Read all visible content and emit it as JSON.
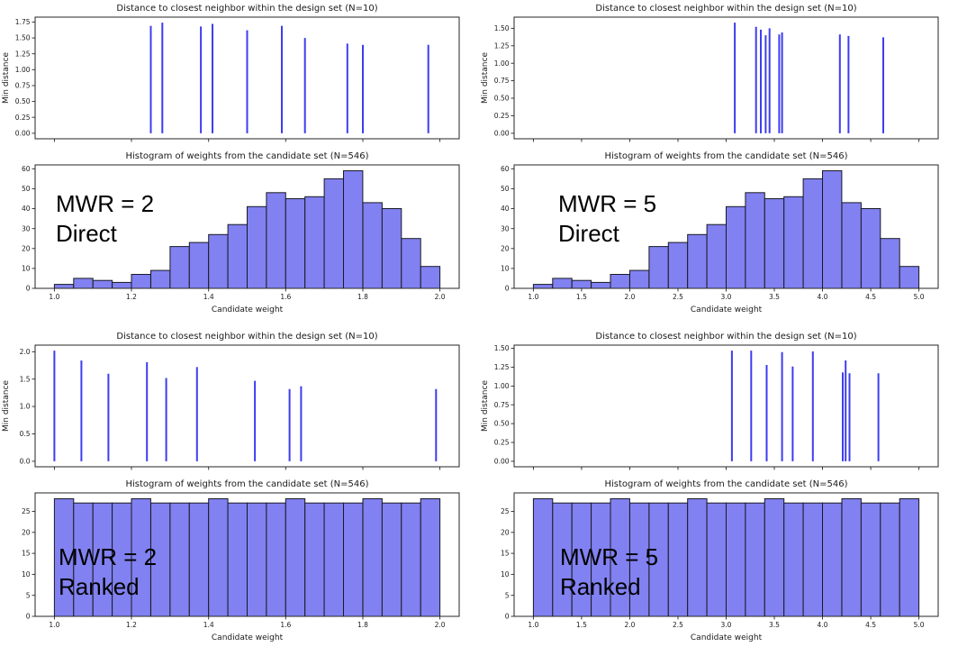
{
  "chart_data": {
    "colors": {
      "stem_line": "#3d3df0",
      "bar_fill": "#8181f1",
      "bar_edge": "#1a1a24",
      "text": "#1a1a1a",
      "spine": "#262626",
      "annotation": "#000000",
      "background": "#ffffff"
    },
    "panels": [
      {
        "name": "MWR = 2 Direct",
        "annotation": {
          "line1": "MWR = 2",
          "line2": "Direct"
        },
        "stem_plot": {
          "type": "stem",
          "title": "Distance to closest neighbor within the design set (N=10)",
          "ylabel": "Min distance",
          "x": [
            1.25,
            1.28,
            1.38,
            1.41,
            1.5,
            1.59,
            1.65,
            1.76,
            1.8,
            1.97
          ],
          "y": [
            1.69,
            1.74,
            1.68,
            1.72,
            1.62,
            1.69,
            1.5,
            1.41,
            1.39,
            1.39
          ],
          "xlim": [
            1.0,
            2.0
          ],
          "xticks": [
            1.0,
            1.2,
            1.4,
            1.6,
            1.8,
            2.0
          ],
          "yticks": {
            "values": [
              0,
              0.25,
              0.5,
              0.75,
              1.0,
              1.25,
              1.5,
              1.75
            ],
            "labels": [
              "0.00",
              "0.25",
              "0.50",
              "0.75",
              "1.00",
              "1.25",
              "1.50",
              "1.75"
            ]
          }
        },
        "histogram": {
          "type": "bar",
          "title": "Histogram of weights from the candidate set (N=546)",
          "xlabel": "Candidate weight",
          "bin_start": 1.0,
          "bin_width": 0.05,
          "values": [
            2,
            5,
            4,
            3,
            7,
            9,
            21,
            23,
            27,
            32,
            41,
            48,
            45,
            46,
            55,
            59,
            43,
            40,
            25,
            11
          ],
          "xticks": {
            "values": [
              1.0,
              1.2,
              1.4,
              1.6,
              1.8,
              2.0
            ],
            "labels": [
              "1.0",
              "1.2",
              "1.4",
              "1.6",
              "1.8",
              "2.0"
            ]
          },
          "yticks": {
            "values": [
              0,
              10,
              20,
              30,
              40,
              50,
              60
            ],
            "labels": [
              "0",
              "10",
              "20",
              "30",
              "40",
              "50",
              "60"
            ]
          }
        }
      },
      {
        "name": "MWR = 5 Direct",
        "annotation": {
          "line1": "MWR = 5",
          "line2": "Direct"
        },
        "stem_plot": {
          "type": "stem",
          "title": "Distance to closest neighbor within the design set (N=10)",
          "ylabel": "Min distance",
          "x": [
            3.09,
            3.31,
            3.36,
            3.41,
            3.45,
            3.55,
            3.58,
            4.18,
            4.27,
            4.63
          ],
          "y": [
            1.58,
            1.52,
            1.48,
            1.4,
            1.5,
            1.41,
            1.44,
            1.41,
            1.39,
            1.37
          ],
          "xlim": [
            1.0,
            5.0
          ],
          "xticks": [
            1.0,
            1.5,
            2.0,
            2.5,
            3.0,
            3.5,
            4.0,
            4.5,
            5.0
          ],
          "yticks": {
            "values": [
              0,
              0.25,
              0.5,
              0.75,
              1.0,
              1.25,
              1.5
            ],
            "labels": [
              "0.00",
              "0.25",
              "0.50",
              "0.75",
              "1.00",
              "1.25",
              "1.50"
            ]
          }
        },
        "histogram": {
          "type": "bar",
          "title": "Histogram of weights from the candidate set (N=546)",
          "xlabel": "Candidate weight",
          "bin_start": 1.0,
          "bin_width": 0.2,
          "values": [
            2,
            5,
            4,
            3,
            7,
            9,
            21,
            23,
            27,
            32,
            41,
            48,
            45,
            46,
            55,
            59,
            43,
            40,
            25,
            11
          ],
          "xticks": {
            "values": [
              1.0,
              1.5,
              2.0,
              2.5,
              3.0,
              3.5,
              4.0,
              4.5,
              5.0
            ],
            "labels": [
              "1.0",
              "1.5",
              "2.0",
              "2.5",
              "3.0",
              "3.5",
              "4.0",
              "4.5",
              "5.0"
            ]
          },
          "yticks": {
            "values": [
              0,
              10,
              20,
              30,
              40,
              50,
              60
            ],
            "labels": [
              "0",
              "10",
              "20",
              "30",
              "40",
              "50",
              "60"
            ]
          }
        }
      },
      {
        "name": "MWR = 2 Ranked",
        "annotation": {
          "line1": "MWR = 2",
          "line2": "Ranked"
        },
        "stem_plot": {
          "type": "stem",
          "title": "Distance to closest neighbor within the design set (N=10)",
          "ylabel": "Min distance",
          "x": [
            1.0,
            1.07,
            1.14,
            1.24,
            1.29,
            1.37,
            1.52,
            1.61,
            1.64,
            1.99
          ],
          "y": [
            2.02,
            1.84,
            1.6,
            1.81,
            1.52,
            1.72,
            1.47,
            1.32,
            1.37,
            1.32
          ],
          "xlim": [
            1.0,
            2.0
          ],
          "xticks": [
            1.0,
            1.2,
            1.4,
            1.6,
            1.8,
            2.0
          ],
          "yticks": {
            "values": [
              0,
              0.5,
              1.0,
              1.5,
              2.0
            ],
            "labels": [
              "0.0",
              "0.5",
              "1.0",
              "1.5",
              "2.0"
            ]
          }
        },
        "histogram": {
          "type": "bar",
          "title": "Histogram of weights from the candidate set (N=546)",
          "xlabel": "Candidate weight",
          "bin_start": 1.0,
          "bin_width": 0.05,
          "values": [
            28,
            27,
            27,
            27,
            28,
            27,
            27,
            27,
            28,
            27,
            27,
            27,
            28,
            27,
            27,
            27,
            28,
            27,
            27,
            28
          ],
          "xticks": {
            "values": [
              1.0,
              1.2,
              1.4,
              1.6,
              1.8,
              2.0
            ],
            "labels": [
              "1.0",
              "1.2",
              "1.4",
              "1.6",
              "1.8",
              "2.0"
            ]
          },
          "yticks": {
            "values": [
              0,
              5,
              10,
              15,
              20,
              25
            ],
            "labels": [
              "0",
              "5",
              "10",
              "15",
              "20",
              "25"
            ]
          }
        }
      },
      {
        "name": "MWR = 5 Ranked",
        "annotation": {
          "line1": "MWR = 5",
          "line2": "Ranked"
        },
        "stem_plot": {
          "type": "stem",
          "title": "Distance to closest neighbor within the design set (N=10)",
          "ylabel": "Min distance",
          "x": [
            3.06,
            3.26,
            3.42,
            3.58,
            3.69,
            3.9,
            4.21,
            4.24,
            4.28,
            4.58
          ],
          "y": [
            1.47,
            1.47,
            1.28,
            1.45,
            1.26,
            1.46,
            1.18,
            1.34,
            1.17,
            1.17
          ],
          "xlim": [
            1.0,
            5.0
          ],
          "xticks": [
            1.0,
            1.5,
            2.0,
            2.5,
            3.0,
            3.5,
            4.0,
            4.5,
            5.0
          ],
          "yticks": {
            "values": [
              0,
              0.25,
              0.5,
              0.75,
              1.0,
              1.25,
              1.5
            ],
            "labels": [
              "0.00",
              "0.25",
              "0.50",
              "0.75",
              "1.00",
              "1.25",
              "1.50"
            ]
          }
        },
        "histogram": {
          "type": "bar",
          "title": "Histogram of weights from the candidate set (N=546)",
          "xlabel": "Candidate weight",
          "bin_start": 1.0,
          "bin_width": 0.2,
          "values": [
            28,
            27,
            27,
            27,
            28,
            27,
            27,
            27,
            28,
            27,
            27,
            27,
            28,
            27,
            27,
            27,
            28,
            27,
            27,
            28
          ],
          "xticks": {
            "values": [
              1.0,
              1.5,
              2.0,
              2.5,
              3.0,
              3.5,
              4.0,
              4.5,
              5.0
            ],
            "labels": [
              "1.0",
              "1.5",
              "2.0",
              "2.5",
              "3.0",
              "3.5",
              "4.0",
              "4.5",
              "5.0"
            ]
          },
          "yticks": {
            "values": [
              0,
              5,
              10,
              15,
              20,
              25
            ],
            "labels": [
              "0",
              "5",
              "10",
              "15",
              "20",
              "25"
            ]
          }
        }
      }
    ]
  }
}
